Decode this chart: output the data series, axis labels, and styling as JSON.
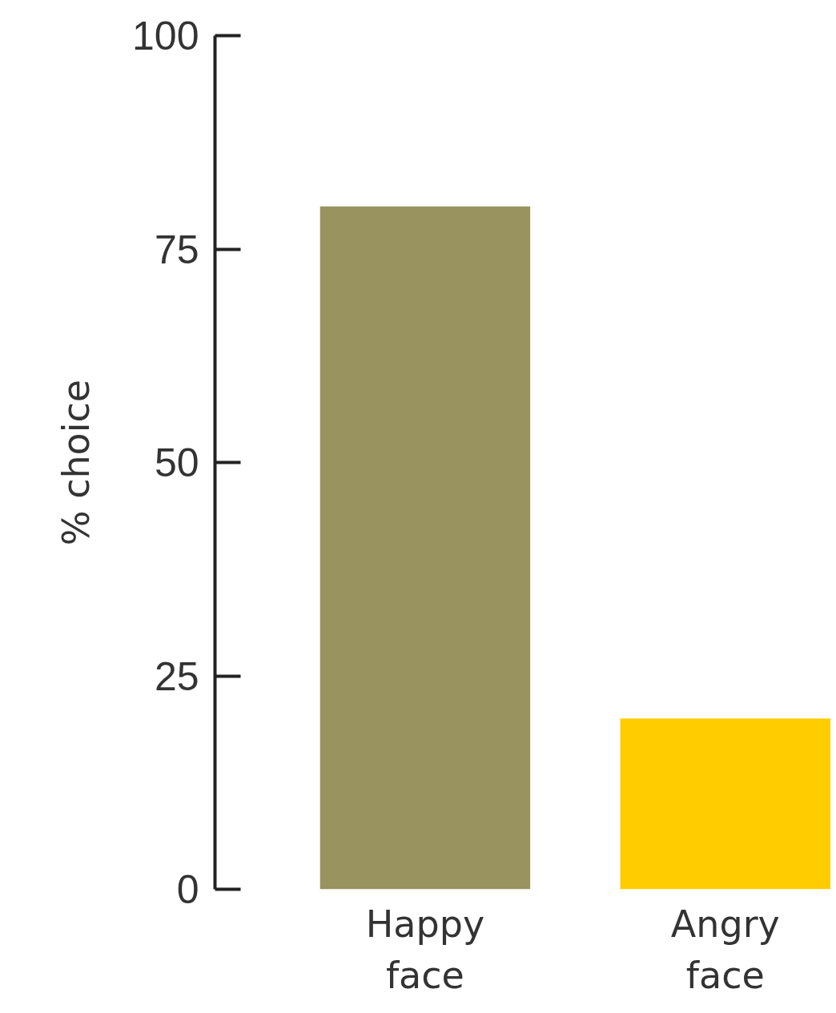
{
  "chart_data": {
    "type": "bar",
    "ylabel": "% choice",
    "categories": [
      "Happy\nface",
      "Angry\nface"
    ],
    "values": [
      80,
      20
    ],
    "colors": [
      "#98935f",
      "#ffcc00"
    ],
    "ylim": [
      0,
      100
    ],
    "yticks": [
      0,
      25,
      50,
      75,
      100
    ],
    "grid": false
  }
}
